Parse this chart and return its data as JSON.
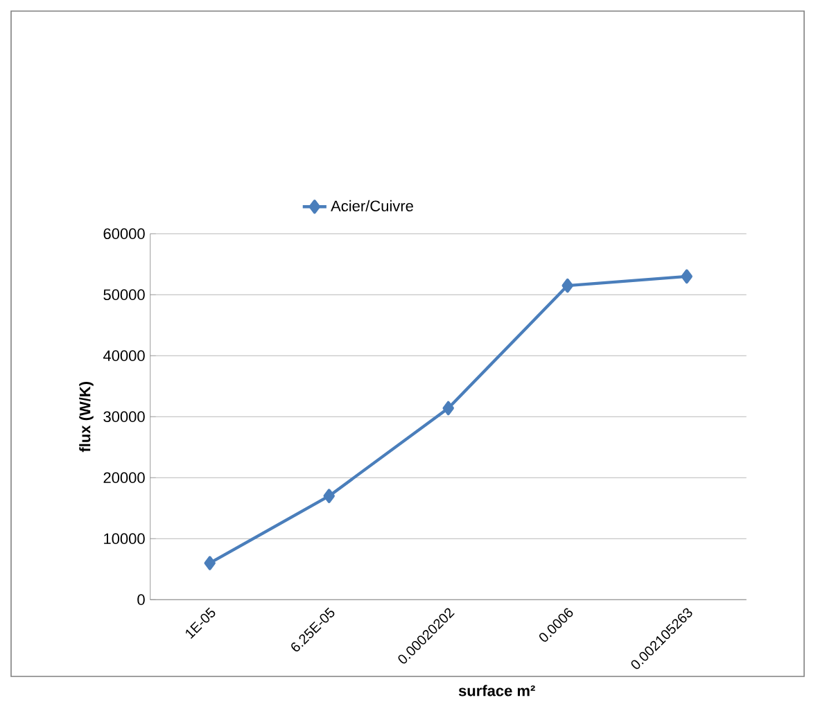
{
  "chart_data": {
    "type": "line",
    "xlabel": "surface m²",
    "ylabel": "flux (W/K)",
    "categories": [
      "1E-05",
      "6.25E-05",
      "0.00020202",
      "0.0006",
      "0.002105263"
    ],
    "series": [
      {
        "name": "Acier/Cuivre",
        "color": "#4a7ebb",
        "values": [
          6000,
          17000,
          31400,
          51500,
          53000
        ]
      }
    ],
    "ylim": [
      0,
      60000
    ],
    "yticks": [
      0,
      10000,
      20000,
      30000,
      40000,
      50000,
      60000
    ],
    "grid": "y",
    "legend": "top",
    "marker": "diamond",
    "line_style": "solid"
  }
}
